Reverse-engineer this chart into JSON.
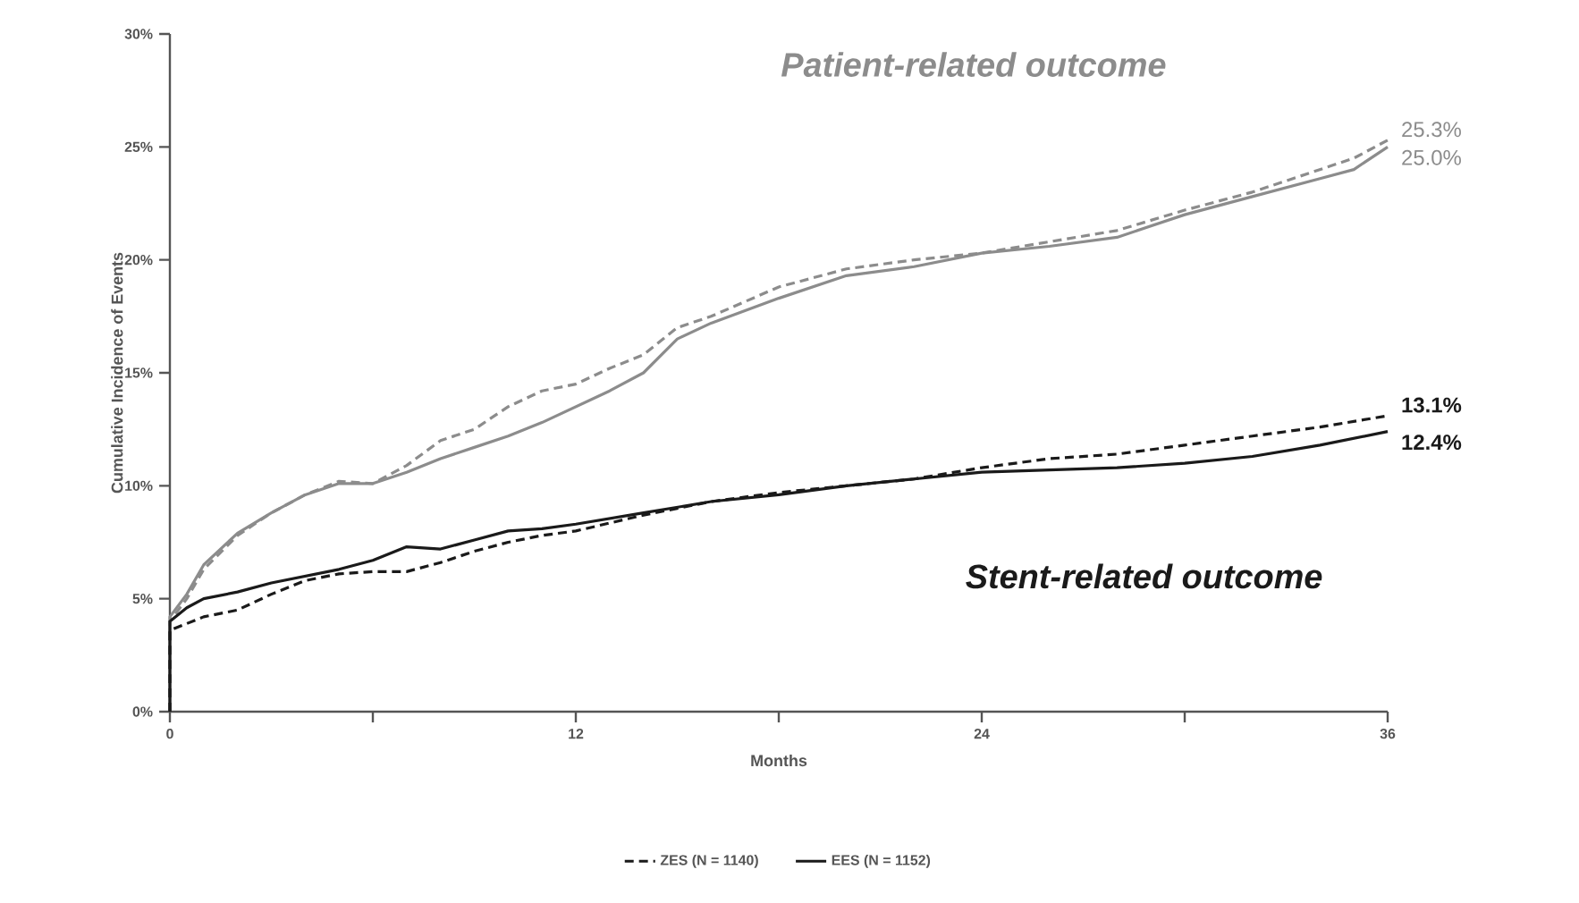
{
  "chart_data": {
    "type": "line",
    "xlabel": "Months",
    "ylabel": "Cumulative Incidence of Events",
    "xlim": [
      0,
      36
    ],
    "ylim": [
      0,
      30
    ],
    "xticks": [
      0,
      {
        "value": 6,
        "label": null
      },
      12,
      {
        "value": 18,
        "label": null
      },
      24,
      {
        "value": 30,
        "label": null
      },
      36
    ],
    "yticks": [
      {
        "value": 0,
        "label": "0%"
      },
      {
        "value": 5,
        "label": "5%"
      },
      {
        "value": 10,
        "label": "10%"
      },
      {
        "value": 15,
        "label": "15%"
      },
      {
        "value": 20,
        "label": "20%"
      },
      {
        "value": 25,
        "label": "25%"
      },
      {
        "value": 30,
        "label": "30%"
      }
    ],
    "grid": false,
    "legend": "bottom",
    "marker": "none",
    "series": [
      {
        "color": "#8c8c8c",
        "line_style": "dashed",
        "x": [
          0,
          0,
          0.5,
          1,
          2,
          3,
          4,
          5,
          6,
          7,
          8,
          9,
          10,
          11,
          12,
          13,
          14,
          15,
          16,
          18,
          20,
          22,
          24,
          26,
          28,
          30,
          32,
          34,
          35,
          36
        ],
        "values": [
          0,
          4.0,
          5,
          6.3,
          7.8,
          8.8,
          9.6,
          10.2,
          10.1,
          10.9,
          12.0,
          12.5,
          13.5,
          14.2,
          14.5,
          15.2,
          15.8,
          17.0,
          17.5,
          18.8,
          19.6,
          20.0,
          20.3,
          20.8,
          21.3,
          22.2,
          23.0,
          24.0,
          24.5,
          25.3
        ],
        "value_labels": [
          null,
          null,
          null,
          null,
          null,
          null,
          null,
          null,
          null,
          null,
          null,
          null,
          null,
          null,
          null,
          null,
          null,
          null,
          null,
          null,
          null,
          null,
          null,
          null,
          null,
          null,
          null,
          null,
          null,
          "25.3%"
        ]
      },
      {
        "color": "#8c8c8c",
        "line_style": "solid",
        "x": [
          0,
          0,
          0.5,
          1,
          2,
          3,
          4,
          5,
          6,
          7,
          8,
          9,
          10,
          11,
          12,
          13,
          14,
          15,
          16,
          18,
          20,
          22,
          24,
          26,
          28,
          30,
          32,
          34,
          35,
          36
        ],
        "values": [
          0,
          4.2,
          5.2,
          6.5,
          7.9,
          8.8,
          9.6,
          10.1,
          10.1,
          10.6,
          11.2,
          11.7,
          12.2,
          12.8,
          13.5,
          14.2,
          15.0,
          16.5,
          17.2,
          18.3,
          19.3,
          19.7,
          20.3,
          20.6,
          21.0,
          22.0,
          22.8,
          23.6,
          24.0,
          25.0
        ],
        "value_labels": [
          null,
          null,
          null,
          null,
          null,
          null,
          null,
          null,
          null,
          null,
          null,
          null,
          null,
          null,
          null,
          null,
          null,
          null,
          null,
          null,
          null,
          null,
          null,
          null,
          null,
          null,
          null,
          null,
          null,
          "25.0%"
        ]
      },
      {
        "name": "ZES (N = 1140)",
        "color": "#1a1a1a",
        "line_style": "dashed",
        "x": [
          0,
          0,
          0.5,
          1,
          2,
          3,
          4,
          5,
          6,
          7,
          8,
          9,
          10,
          11,
          12,
          14,
          16,
          18,
          20,
          22,
          24,
          26,
          28,
          30,
          32,
          34,
          36
        ],
        "values": [
          0,
          3.6,
          3.9,
          4.2,
          4.5,
          5.2,
          5.8,
          6.1,
          6.2,
          6.2,
          6.6,
          7.1,
          7.5,
          7.8,
          8.0,
          8.7,
          9.3,
          9.7,
          10.0,
          10.3,
          10.8,
          11.2,
          11.4,
          11.8,
          12.2,
          12.6,
          13.1
        ],
        "value_labels": [
          null,
          null,
          null,
          null,
          null,
          null,
          null,
          null,
          null,
          null,
          null,
          null,
          null,
          null,
          null,
          null,
          null,
          null,
          null,
          null,
          null,
          null,
          null,
          null,
          null,
          null,
          "13.1%"
        ]
      },
      {
        "name": "EES (N = 1152)",
        "color": "#1a1a1a",
        "line_style": "solid",
        "x": [
          0,
          0,
          0.5,
          1,
          2,
          3,
          4,
          5,
          6,
          7,
          8,
          9,
          10,
          11,
          12,
          14,
          16,
          18,
          20,
          22,
          24,
          26,
          28,
          30,
          32,
          34,
          36
        ],
        "values": [
          0,
          4.0,
          4.6,
          5.0,
          5.3,
          5.7,
          6.0,
          6.3,
          6.7,
          7.3,
          7.2,
          7.6,
          8.0,
          8.1,
          8.3,
          8.8,
          9.3,
          9.6,
          10.0,
          10.3,
          10.6,
          10.7,
          10.8,
          11.0,
          11.3,
          11.8,
          12.4
        ],
        "value_labels": [
          null,
          null,
          null,
          null,
          null,
          null,
          null,
          null,
          null,
          null,
          null,
          null,
          null,
          null,
          null,
          null,
          null,
          null,
          null,
          null,
          null,
          null,
          null,
          null,
          null,
          null,
          "12.4%"
        ]
      }
    ],
    "annotations": [
      "Patient-related outcome",
      "Stent-related outcome"
    ]
  }
}
